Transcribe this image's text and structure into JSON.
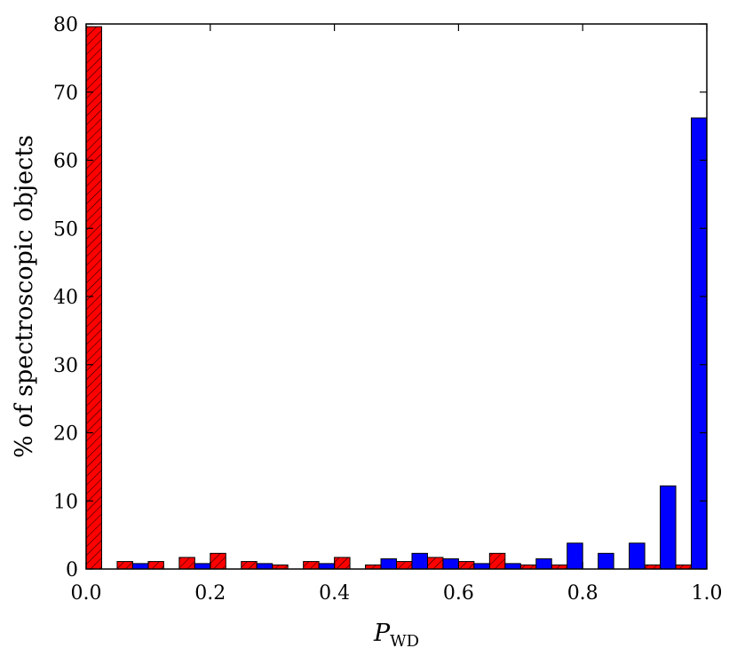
{
  "chart_data": {
    "type": "bar",
    "xlabel": "P",
    "xlabel_sub": "WD",
    "ylabel": "% of spectroscopic objects",
    "xlim": [
      0.0,
      1.0
    ],
    "ylim": [
      0,
      80
    ],
    "xticks": [
      "0.0",
      "0.2",
      "0.4",
      "0.6",
      "0.8",
      "1.0"
    ],
    "yticks": [
      "0",
      "10",
      "20",
      "30",
      "40",
      "50",
      "60",
      "70",
      "80"
    ],
    "bin_width": 0.05,
    "bin_starts": [
      0.0,
      0.05,
      0.1,
      0.15,
      0.2,
      0.25,
      0.3,
      0.35,
      0.4,
      0.45,
      0.5,
      0.55,
      0.6,
      0.65,
      0.7,
      0.75,
      0.8,
      0.85,
      0.9,
      0.95
    ],
    "grid": false,
    "legend": "none",
    "series": [
      {
        "color": "#ff0000",
        "hatch": true,
        "values": [
          79.6,
          1.1,
          1.1,
          1.7,
          2.3,
          1.1,
          0.6,
          1.1,
          1.7,
          0.6,
          1.1,
          1.7,
          1.1,
          2.3,
          0.6,
          0.6,
          0.0,
          0.0,
          0.6,
          0.6
        ]
      },
      {
        "color": "#0000ff",
        "hatch": false,
        "values": [
          0.0,
          0.8,
          0.0,
          0.8,
          0.0,
          0.8,
          0.0,
          0.8,
          0.0,
          1.5,
          2.3,
          1.5,
          0.8,
          0.8,
          1.5,
          3.8,
          2.3,
          3.8,
          12.2,
          66.2
        ]
      }
    ]
  }
}
